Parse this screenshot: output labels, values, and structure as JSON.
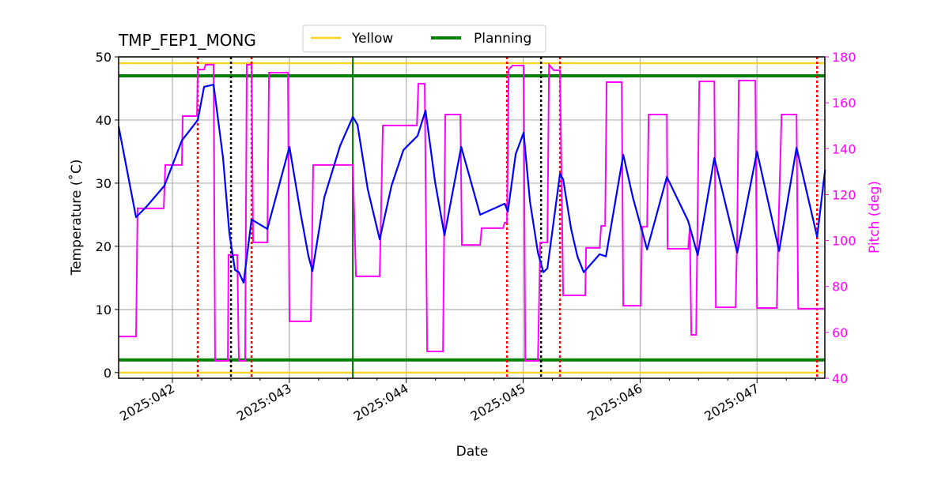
{
  "chart_data": {
    "type": "line",
    "title": "TMP_FEP1_MONG",
    "xlabel": "Date",
    "ylabel": "Temperature ($^\\circ$C)",
    "ylabel_display": "Temperature (˚C)",
    "y2label": "Pitch (deg)",
    "xlim": [
      41.54,
      47.58
    ],
    "ylim": [
      -0.9,
      50
    ],
    "y2lim": [
      40,
      180
    ],
    "x_ticks": [
      {
        "v": 42,
        "label": "2025:042"
      },
      {
        "v": 43,
        "label": "2025:043"
      },
      {
        "v": 44,
        "label": "2025:044"
      },
      {
        "v": 45,
        "label": "2025:045"
      },
      {
        "v": 46,
        "label": "2025:046"
      },
      {
        "v": 47,
        "label": "2025:047"
      }
    ],
    "y_ticks": [
      0,
      10,
      20,
      30,
      40,
      50
    ],
    "y2_ticks": [
      40,
      60,
      80,
      100,
      120,
      140,
      160,
      180
    ],
    "grid": true,
    "legend": {
      "placement": "top-center",
      "entries": [
        {
          "name": "Yellow",
          "color": "#ffd11a"
        },
        {
          "name": "Planning",
          "color": "#008000"
        }
      ]
    },
    "colors": {
      "temperature": "#0000ff",
      "pitch": "#ff00ff",
      "yellow": "#ffd11a",
      "planning": "#008000",
      "red_marker": "#ff0000",
      "black_marker": "#000000",
      "y2_axis": "#ff00ff"
    },
    "limits": {
      "yellow": [
        49,
        0
      ],
      "planning": [
        47,
        2
      ]
    },
    "vlines": {
      "red_dotted": [
        42.217,
        42.677,
        44.862,
        45.315,
        47.514
      ],
      "black_dotted": [
        42.501,
        45.153
      ],
      "green_solid": [
        43.543
      ]
    },
    "temperature": [
      [
        41.54,
        39.0
      ],
      [
        41.689,
        24.6
      ],
      [
        41.777,
        26.25
      ],
      [
        41.932,
        29.6
      ],
      [
        42.081,
        36.75
      ],
      [
        42.217,
        40.0
      ],
      [
        42.271,
        45.25
      ],
      [
        42.352,
        45.6
      ],
      [
        42.433,
        34.0
      ],
      [
        42.487,
        22.1
      ],
      [
        42.535,
        16.25
      ],
      [
        42.568,
        15.9
      ],
      [
        42.609,
        14.25
      ],
      [
        42.677,
        24.25
      ],
      [
        42.812,
        22.75
      ],
      [
        43.001,
        35.75
      ],
      [
        43.096,
        25.25
      ],
      [
        43.164,
        18.4
      ],
      [
        43.198,
        16.1
      ],
      [
        43.299,
        27.75
      ],
      [
        43.434,
        35.9
      ],
      [
        43.543,
        40.5
      ],
      [
        43.583,
        39.25
      ],
      [
        43.671,
        29.0
      ],
      [
        43.773,
        21.1
      ],
      [
        43.874,
        29.6
      ],
      [
        43.976,
        35.25
      ],
      [
        44.097,
        37.5
      ],
      [
        44.165,
        41.5
      ],
      [
        44.246,
        30.25
      ],
      [
        44.327,
        21.75
      ],
      [
        44.47,
        35.75
      ],
      [
        44.632,
        25.0
      ],
      [
        44.842,
        26.75
      ],
      [
        44.869,
        25.5
      ],
      [
        44.936,
        34.6
      ],
      [
        45.004,
        38.0
      ],
      [
        45.058,
        27.1
      ],
      [
        45.126,
        19.0
      ],
      [
        45.173,
        15.9
      ],
      [
        45.207,
        16.5
      ],
      [
        45.315,
        31.5
      ],
      [
        45.342,
        30.6
      ],
      [
        45.41,
        22.75
      ],
      [
        45.464,
        18.4
      ],
      [
        45.518,
        15.9
      ],
      [
        45.654,
        18.75
      ],
      [
        45.708,
        18.4
      ],
      [
        45.856,
        34.5
      ],
      [
        45.938,
        27.75
      ],
      [
        46.06,
        19.5
      ],
      [
        46.229,
        31.0
      ],
      [
        46.411,
        24.0
      ],
      [
        46.493,
        18.6
      ],
      [
        46.635,
        34.0
      ],
      [
        46.831,
        19.0
      ],
      [
        47.0,
        35.0
      ],
      [
        47.189,
        19.25
      ],
      [
        47.338,
        35.6
      ],
      [
        47.514,
        21.5
      ],
      [
        47.582,
        32.1
      ]
    ],
    "pitch": [
      [
        41.54,
        58.2
      ],
      [
        41.689,
        58.2
      ],
      [
        41.702,
        114.0
      ],
      [
        41.926,
        114.0
      ],
      [
        41.939,
        132.9
      ],
      [
        42.081,
        132.9
      ],
      [
        42.088,
        154.2
      ],
      [
        42.21,
        154.2
      ],
      [
        42.217,
        174.5
      ],
      [
        42.271,
        174.5
      ],
      [
        42.284,
        176.6
      ],
      [
        42.352,
        176.6
      ],
      [
        42.365,
        47.6
      ],
      [
        42.474,
        47.6
      ],
      [
        42.48,
        93.7
      ],
      [
        42.555,
        93.7
      ],
      [
        42.568,
        47.6
      ],
      [
        42.622,
        47.6
      ],
      [
        42.636,
        176.6
      ],
      [
        42.677,
        176.6
      ],
      [
        42.69,
        99.2
      ],
      [
        42.812,
        99.2
      ],
      [
        42.826,
        173.1
      ],
      [
        42.988,
        173.1
      ],
      [
        43.001,
        64.8
      ],
      [
        43.184,
        64.8
      ],
      [
        43.204,
        132.9
      ],
      [
        43.543,
        132.9
      ],
      [
        43.57,
        84.4
      ],
      [
        43.773,
        84.4
      ],
      [
        43.8,
        150.1
      ],
      [
        44.091,
        150.1
      ],
      [
        44.104,
        168.3
      ],
      [
        44.158,
        168.3
      ],
      [
        44.179,
        51.7
      ],
      [
        44.314,
        51.7
      ],
      [
        44.334,
        154.9
      ],
      [
        44.463,
        154.9
      ],
      [
        44.476,
        98.1
      ],
      [
        44.632,
        98.1
      ],
      [
        44.645,
        105.4
      ],
      [
        44.828,
        105.4
      ],
      [
        44.842,
        107.8
      ],
      [
        44.862,
        107.8
      ],
      [
        44.876,
        174.5
      ],
      [
        44.909,
        176.2
      ],
      [
        45.004,
        176.2
      ],
      [
        45.018,
        47.6
      ],
      [
        45.126,
        47.6
      ],
      [
        45.146,
        99.2
      ],
      [
        45.207,
        99.2
      ],
      [
        45.221,
        176.6
      ],
      [
        45.261,
        174.2
      ],
      [
        45.315,
        174.2
      ],
      [
        45.342,
        76.1
      ],
      [
        45.531,
        76.1
      ],
      [
        45.538,
        96.8
      ],
      [
        45.654,
        96.8
      ],
      [
        45.667,
        106.4
      ],
      [
        45.701,
        106.4
      ],
      [
        45.714,
        169.0
      ],
      [
        45.843,
        169.0
      ],
      [
        45.856,
        71.6
      ],
      [
        46.005,
        71.6
      ],
      [
        46.018,
        106.0
      ],
      [
        46.06,
        106.0
      ],
      [
        46.073,
        154.9
      ],
      [
        46.229,
        154.9
      ],
      [
        46.235,
        96.4
      ],
      [
        46.411,
        96.4
      ],
      [
        46.425,
        105.7
      ],
      [
        46.438,
        58.9
      ],
      [
        46.479,
        58.9
      ],
      [
        46.506,
        169.3
      ],
      [
        46.635,
        169.3
      ],
      [
        46.648,
        70.9
      ],
      [
        46.817,
        70.9
      ],
      [
        46.831,
        105.0
      ],
      [
        46.844,
        169.7
      ],
      [
        46.986,
        169.7
      ],
      [
        47.0,
        70.6
      ],
      [
        47.169,
        70.6
      ],
      [
        47.183,
        105.0
      ],
      [
        47.21,
        154.9
      ],
      [
        47.338,
        154.9
      ],
      [
        47.352,
        70.3
      ],
      [
        47.494,
        70.3
      ],
      [
        47.508,
        70.3
      ],
      [
        47.582,
        70.3
      ]
    ]
  }
}
